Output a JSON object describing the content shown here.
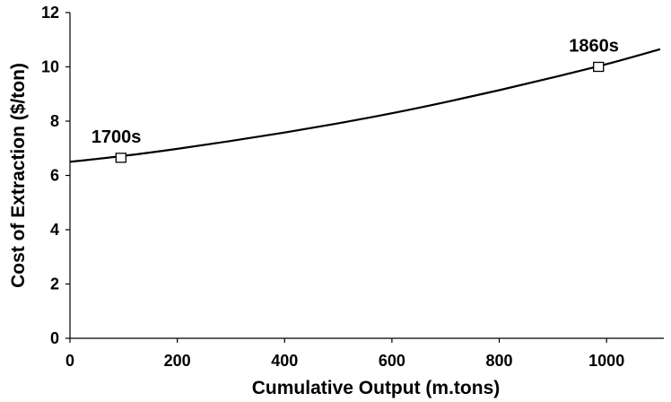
{
  "chart_data": {
    "type": "line",
    "xlabel": "Cumulative Output (m.tons)",
    "ylabel": "Cost of  Extraction ($/ton)",
    "xlim": [
      0,
      1100
    ],
    "ylim": [
      0,
      12
    ],
    "x_ticks": [
      0,
      200,
      400,
      600,
      800,
      1000
    ],
    "y_ticks": [
      0,
      2,
      4,
      6,
      8,
      10,
      12
    ],
    "grid": false,
    "series": [
      {
        "x": [
          0,
          100,
          200,
          300,
          400,
          500,
          600,
          700,
          800,
          900,
          1000,
          1100
        ],
        "values": [
          6.5,
          6.72,
          6.98,
          7.27,
          7.58,
          7.92,
          8.29,
          8.7,
          9.14,
          9.61,
          10.1,
          10.65
        ]
      }
    ],
    "annotations": [
      {
        "label": "1700s",
        "x": 95,
        "y": 6.65
      },
      {
        "label": "1860s",
        "x": 985,
        "y": 10.0
      }
    ]
  }
}
